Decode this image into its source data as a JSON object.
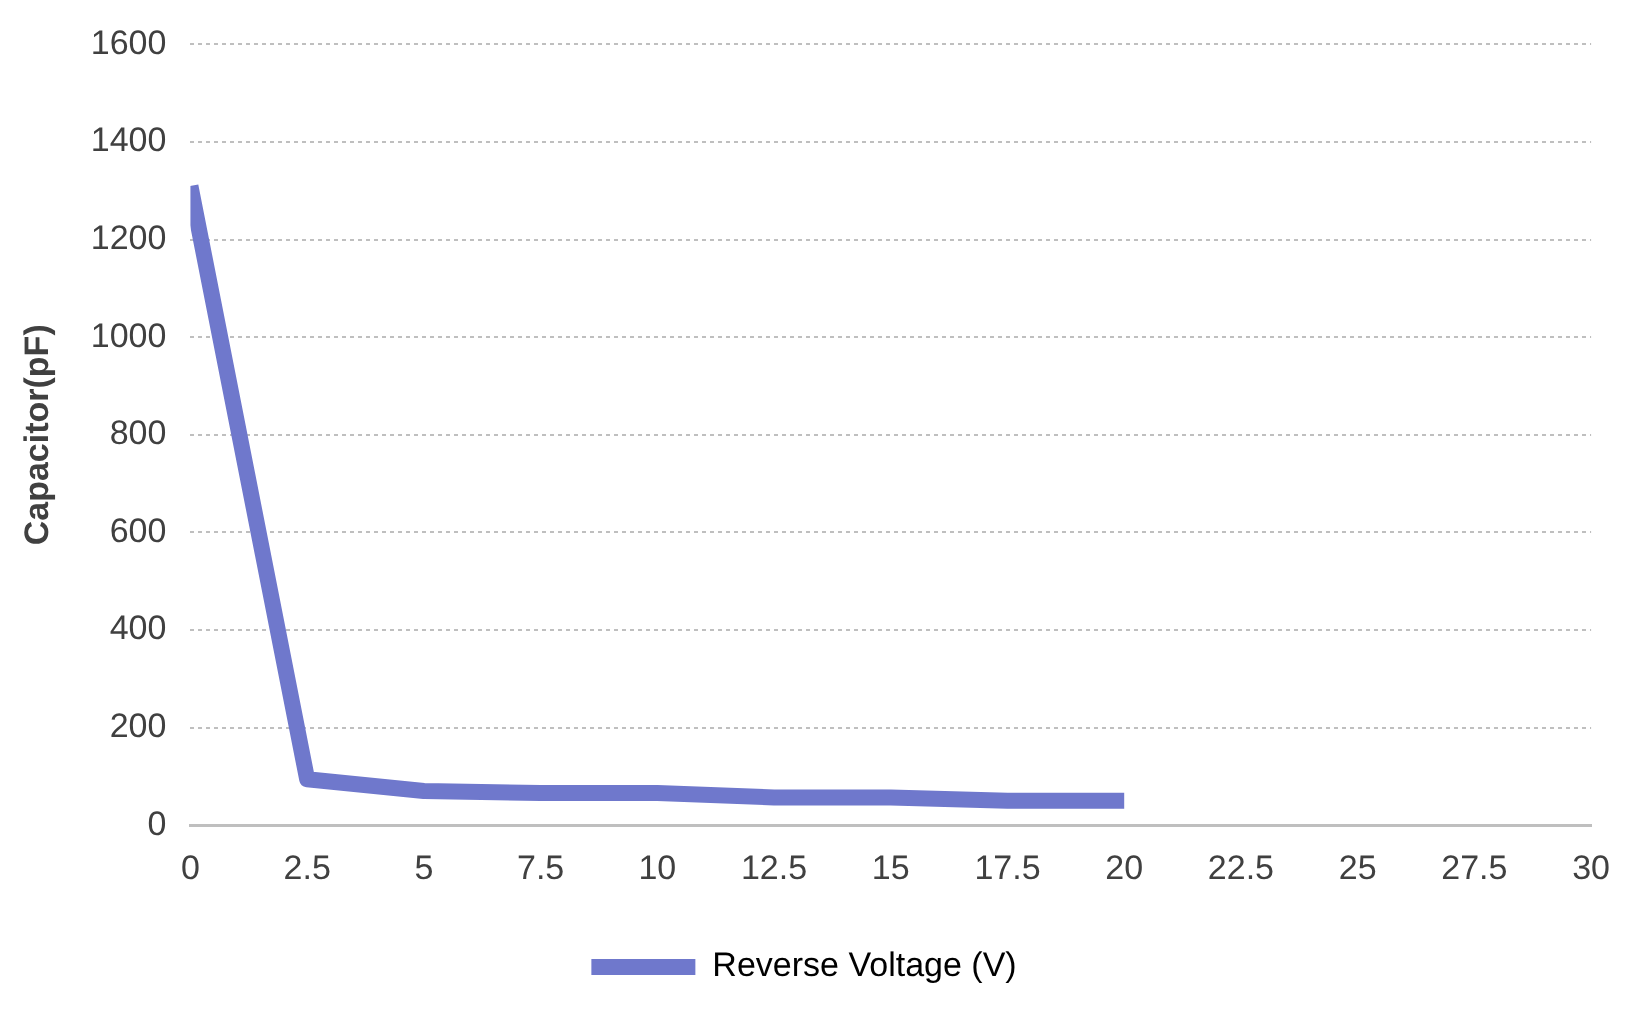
{
  "chart_data": {
    "type": "line",
    "ylabel": "Capacitor(pF)",
    "x": [
      0,
      2.5,
      5,
      7.5,
      10,
      12.5,
      15,
      17.5,
      20
    ],
    "series": [
      {
        "name": "Reverse Voltage (V)",
        "color": "#6f78cc",
        "values": [
          1310,
          94,
          70,
          66,
          66,
          57,
          57,
          50,
          50
        ]
      }
    ],
    "xlim": [
      0,
      30
    ],
    "xticks": [
      0,
      2.5,
      5,
      7.5,
      10,
      12.5,
      15,
      17.5,
      20,
      22.5,
      25,
      27.5,
      30
    ],
    "ylim": [
      0,
      1600
    ],
    "yticks": [
      0,
      200,
      400,
      600,
      800,
      1000,
      1200,
      1400,
      1600
    ],
    "grid": "y",
    "legend": "bottom",
    "marker": "none",
    "line_style": "solid"
  }
}
